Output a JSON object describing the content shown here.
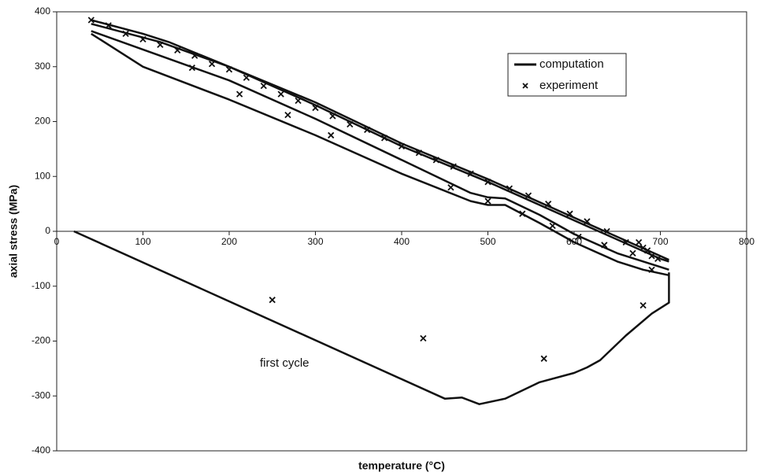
{
  "chart_data": {
    "type": "line-scatter",
    "x_label": "temperature (°C)",
    "y_label": "axial stress (MPa)",
    "annotation": "first cycle",
    "xlim": [
      0,
      800
    ],
    "xticks": [
      0,
      100,
      200,
      300,
      400,
      500,
      600,
      700,
      800
    ],
    "ylim": [
      -400,
      400
    ],
    "yticks": [
      -400,
      -300,
      -200,
      -100,
      0,
      100,
      200,
      300,
      400
    ],
    "grid": false,
    "legend": "upper-right",
    "series": [
      {
        "name": "computation",
        "color": "#111111",
        "kind": "line",
        "x": [
          20,
          450,
          470,
          490,
          520,
          560,
          600,
          615,
          630,
          660,
          690,
          710,
          710,
          710,
          null,
          710,
          680,
          650,
          600,
          560,
          520,
          500,
          480,
          400,
          300,
          200,
          100,
          40,
          null,
          40,
          120,
          200,
          300,
          400,
          480,
          500,
          520,
          560,
          600,
          650,
          700,
          710,
          null,
          40,
          100,
          130,
          200,
          300,
          400,
          500,
          600,
          700,
          710,
          null,
          40,
          120,
          200,
          300,
          400,
          500,
          600,
          700,
          710
        ],
        "y": [
          0,
          -305,
          -303,
          -315,
          -305,
          -275,
          -258,
          -248,
          -235,
          -190,
          -150,
          -130,
          -80,
          -75,
          null,
          -80,
          -70,
          -55,
          -20,
          15,
          48,
          48,
          55,
          105,
          175,
          240,
          300,
          360,
          null,
          365,
          320,
          275,
          205,
          130,
          70,
          62,
          60,
          30,
          -5,
          -40,
          -65,
          -70,
          null,
          385,
          360,
          345,
          300,
          230,
          155,
          90,
          20,
          -50,
          -55,
          null,
          378,
          345,
          300,
          235,
          160,
          95,
          25,
          -45,
          -52
        ]
      },
      {
        "name": "experiment",
        "color": "#111111",
        "kind": "scatter",
        "x": [
          40,
          60,
          80,
          100,
          120,
          140,
          160,
          180,
          200,
          220,
          240,
          260,
          280,
          300,
          320,
          340,
          360,
          380,
          400,
          420,
          440,
          460,
          480,
          500,
          525,
          547,
          570,
          595,
          615,
          638,
          660,
          680,
          690,
          697,
          157,
          212,
          268,
          318,
          457,
          500,
          540,
          575,
          605,
          635,
          668,
          690,
          675,
          685,
          250,
          425,
          565,
          680
        ],
        "y": [
          385,
          375,
          360,
          350,
          340,
          330,
          320,
          305,
          295,
          280,
          265,
          250,
          238,
          225,
          210,
          195,
          185,
          170,
          155,
          143,
          130,
          118,
          105,
          90,
          78,
          65,
          50,
          32,
          18,
          0,
          -20,
          -30,
          -45,
          -50,
          298,
          250,
          212,
          175,
          80,
          55,
          32,
          10,
          -10,
          -25,
          -40,
          -70,
          -20,
          -35,
          -125,
          -195,
          -232,
          -135
        ]
      }
    ]
  }
}
